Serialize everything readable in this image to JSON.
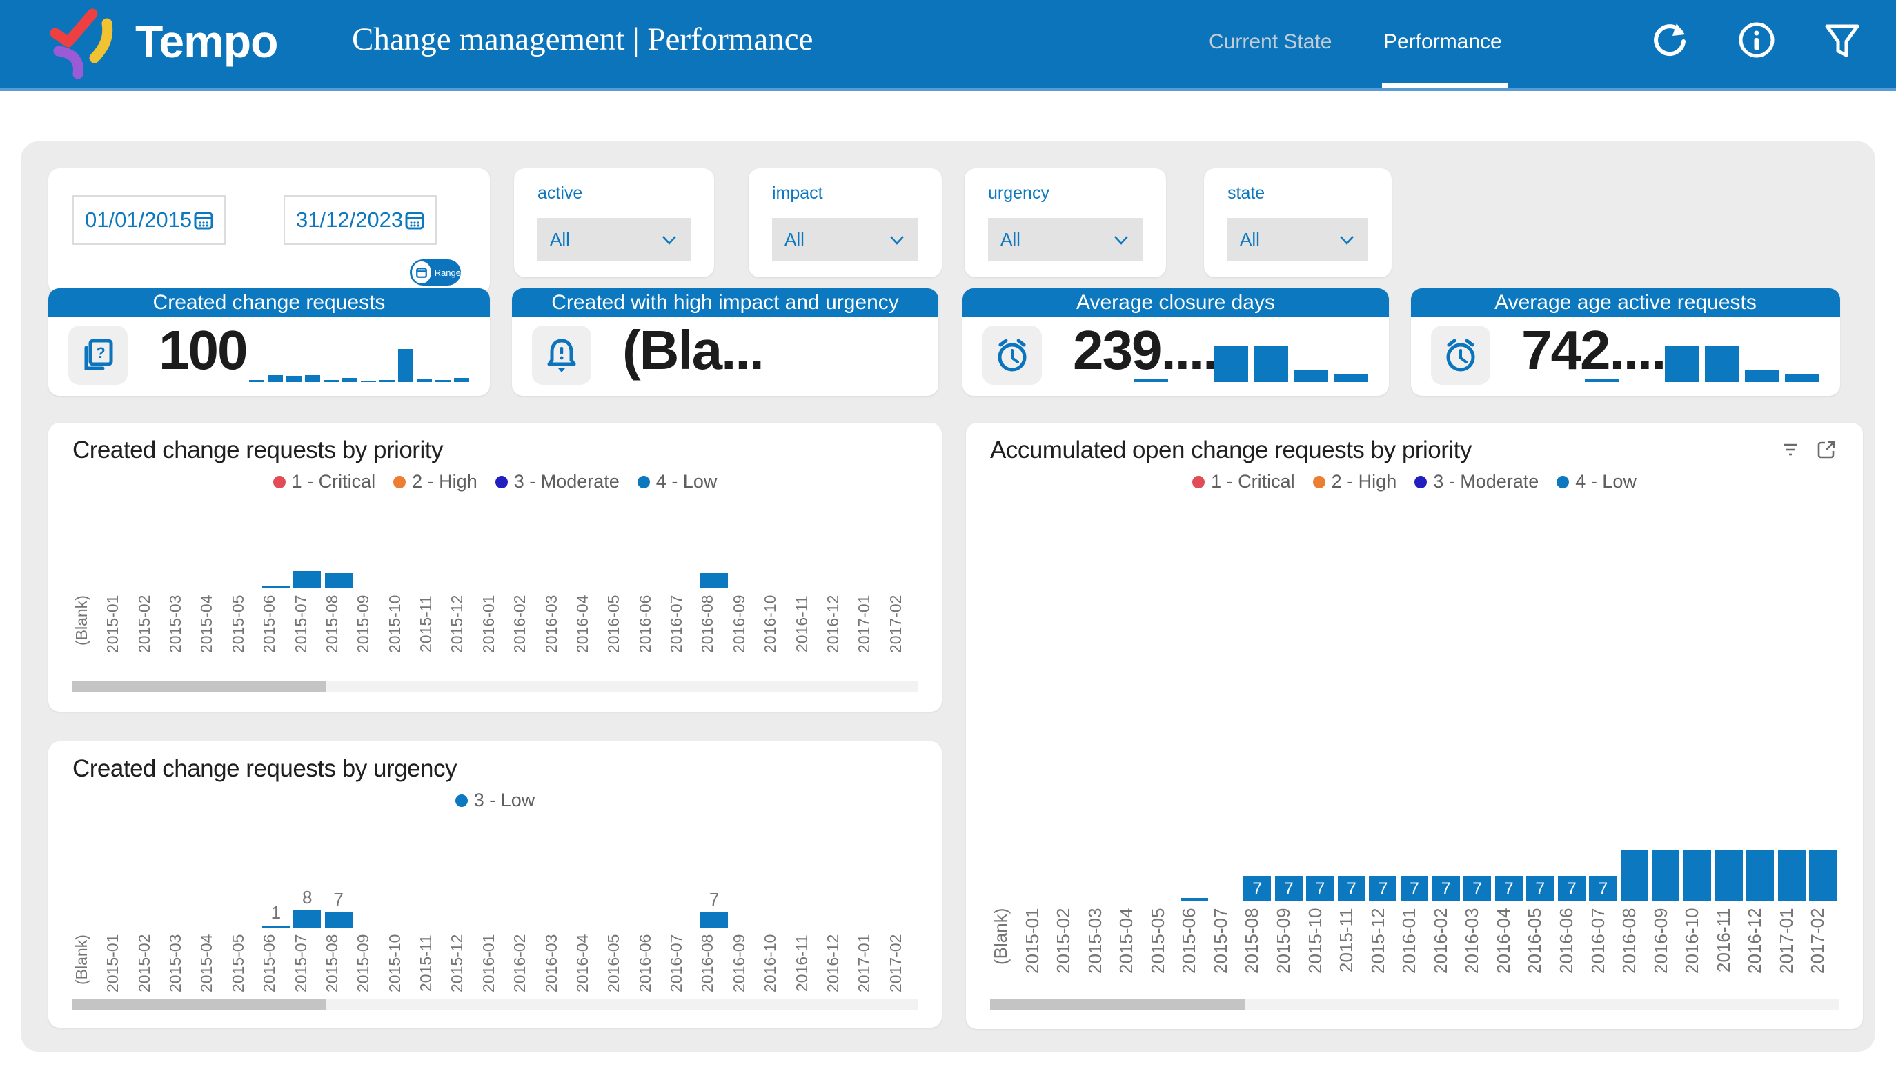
{
  "header": {
    "brand": "Tempo",
    "title": "Change management | Performance",
    "tabs": [
      {
        "label": "Current State",
        "active": false
      },
      {
        "label": "Performance",
        "active": true
      }
    ]
  },
  "filters": {
    "date_from": "01/01/2015",
    "date_to": "31/12/2023",
    "range_button": "Range",
    "dropdowns": [
      {
        "label": "active",
        "value": "All"
      },
      {
        "label": "impact",
        "value": "All"
      },
      {
        "label": "urgency",
        "value": "All"
      },
      {
        "label": "state",
        "value": "All"
      }
    ]
  },
  "kpis": [
    {
      "title": "Created change requests",
      "value": "100",
      "icon": "document-question-icon",
      "spark": [
        3,
        10,
        9,
        10,
        3,
        6,
        2,
        3,
        48,
        4,
        3,
        6
      ]
    },
    {
      "title": "Created with high impact and urgency",
      "value": "(Bla...",
      "icon": "alert-bell-icon",
      "spark": []
    },
    {
      "title": "Average closure days",
      "value": "239....",
      "icon": "alarm-clock-icon",
      "spark": [
        4,
        0,
        52,
        52,
        17,
        11
      ]
    },
    {
      "title": "Average age active requests",
      "value": "742....",
      "icon": "alarm-clock-icon",
      "spark": [
        4,
        0,
        52,
        52,
        17,
        12
      ]
    }
  ],
  "chart_data": [
    {
      "type": "bar",
      "title": "Created change requests by priority",
      "xlabel": "",
      "ylabel": "",
      "legend_position": "top",
      "grid": false,
      "ylim": [
        0,
        30
      ],
      "legend": [
        {
          "label": "1 - Critical",
          "color": "#e24c56"
        },
        {
          "label": "2 - High",
          "color": "#ed7d31"
        },
        {
          "label": "3 - Moderate",
          "color": "#2120bf"
        },
        {
          "label": "4 - Low",
          "color": "#0b78bf"
        }
      ],
      "categories": [
        "(Blank)",
        "2015-01",
        "2015-02",
        "2015-03",
        "2015-04",
        "2015-05",
        "2015-06",
        "2015-07",
        "2015-08",
        "2015-09",
        "2015-10",
        "2015-11",
        "2015-12",
        "2016-01",
        "2016-02",
        "2016-03",
        "2016-04",
        "2016-05",
        "2016-06",
        "2016-07",
        "2016-08",
        "2016-09",
        "2016-10",
        "2016-11",
        "2016-12",
        "2017-01",
        "2017-02"
      ],
      "series": [
        {
          "name": "4 - Low",
          "color": "#0b78bf",
          "values": [
            0,
            0,
            0,
            0,
            0,
            0,
            1,
            8,
            7,
            0,
            0,
            0,
            0,
            0,
            0,
            0,
            0,
            0,
            0,
            0,
            7,
            0,
            0,
            0,
            0,
            0,
            0
          ]
        }
      ],
      "labels": [
        "",
        "",
        "",
        "",
        "",
        "",
        "",
        "",
        "",
        "",
        "",
        "",
        "",
        "",
        "",
        "",
        "",
        "",
        "",
        "",
        "",
        "",
        "",
        "",
        "",
        "",
        ""
      ]
    },
    {
      "type": "bar",
      "title": "Created change requests by urgency",
      "xlabel": "",
      "ylabel": "",
      "legend_position": "top",
      "grid": false,
      "ylim": [
        0,
        30
      ],
      "legend": [
        {
          "label": "3 - Low",
          "color": "#0b78bf"
        }
      ],
      "categories": [
        "(Blank)",
        "2015-01",
        "2015-02",
        "2015-03",
        "2015-04",
        "2015-05",
        "2015-06",
        "2015-07",
        "2015-08",
        "2015-09",
        "2015-10",
        "2015-11",
        "2015-12",
        "2016-01",
        "2016-02",
        "2016-03",
        "2016-04",
        "2016-05",
        "2016-06",
        "2016-07",
        "2016-08",
        "2016-09",
        "2016-10",
        "2016-11",
        "2016-12",
        "2017-01",
        "2017-02"
      ],
      "series": [
        {
          "name": "3 - Low",
          "color": "#0b78bf",
          "values": [
            0,
            0,
            0,
            0,
            0,
            0,
            1,
            8,
            7,
            0,
            0,
            0,
            0,
            0,
            0,
            0,
            0,
            0,
            0,
            0,
            7,
            0,
            0,
            0,
            0,
            0,
            0
          ]
        }
      ],
      "labels": [
        "",
        "",
        "",
        "",
        "",
        "",
        "1",
        "8",
        "7",
        "",
        "",
        "",
        "",
        "",
        "",
        "",
        "",
        "",
        "",
        "",
        "7",
        "",
        "",
        "",
        "",
        "",
        ""
      ]
    },
    {
      "type": "bar",
      "title": "Accumulated open change requests by priority",
      "xlabel": "",
      "ylabel": "",
      "legend_position": "top",
      "grid": false,
      "ylim": [
        0,
        15
      ],
      "legend": [
        {
          "label": "1 - Critical",
          "color": "#e24c56"
        },
        {
          "label": "2 - High",
          "color": "#ed7d31"
        },
        {
          "label": "3 - Moderate",
          "color": "#2120bf"
        },
        {
          "label": "4 - Low",
          "color": "#0b78bf"
        }
      ],
      "categories": [
        "(Blank)",
        "2015-01",
        "2015-02",
        "2015-03",
        "2015-04",
        "2015-05",
        "2015-06",
        "2015-07",
        "2015-08",
        "2015-09",
        "2015-10",
        "2015-11",
        "2015-12",
        "2016-01",
        "2016-02",
        "2016-03",
        "2016-04",
        "2016-05",
        "2016-06",
        "2016-07",
        "2016-08",
        "2016-09",
        "2016-10",
        "2016-11",
        "2016-12",
        "2017-01",
        "2017-02"
      ],
      "series": [
        {
          "name": "4 - Low",
          "color": "#0b78bf",
          "values": [
            0,
            0,
            0,
            0,
            0,
            0,
            1,
            0,
            7,
            7,
            7,
            7,
            7,
            7,
            7,
            7,
            7,
            7,
            7,
            7,
            14,
            14,
            14,
            14,
            14,
            14,
            14
          ]
        }
      ],
      "labels": [
        "",
        "",
        "",
        "",
        "",
        "",
        "",
        "",
        "7",
        "7",
        "7",
        "7",
        "7",
        "7",
        "7",
        "7",
        "7",
        "7",
        "7",
        "7",
        "",
        "",
        "",
        "",
        "",
        "",
        ""
      ]
    }
  ]
}
